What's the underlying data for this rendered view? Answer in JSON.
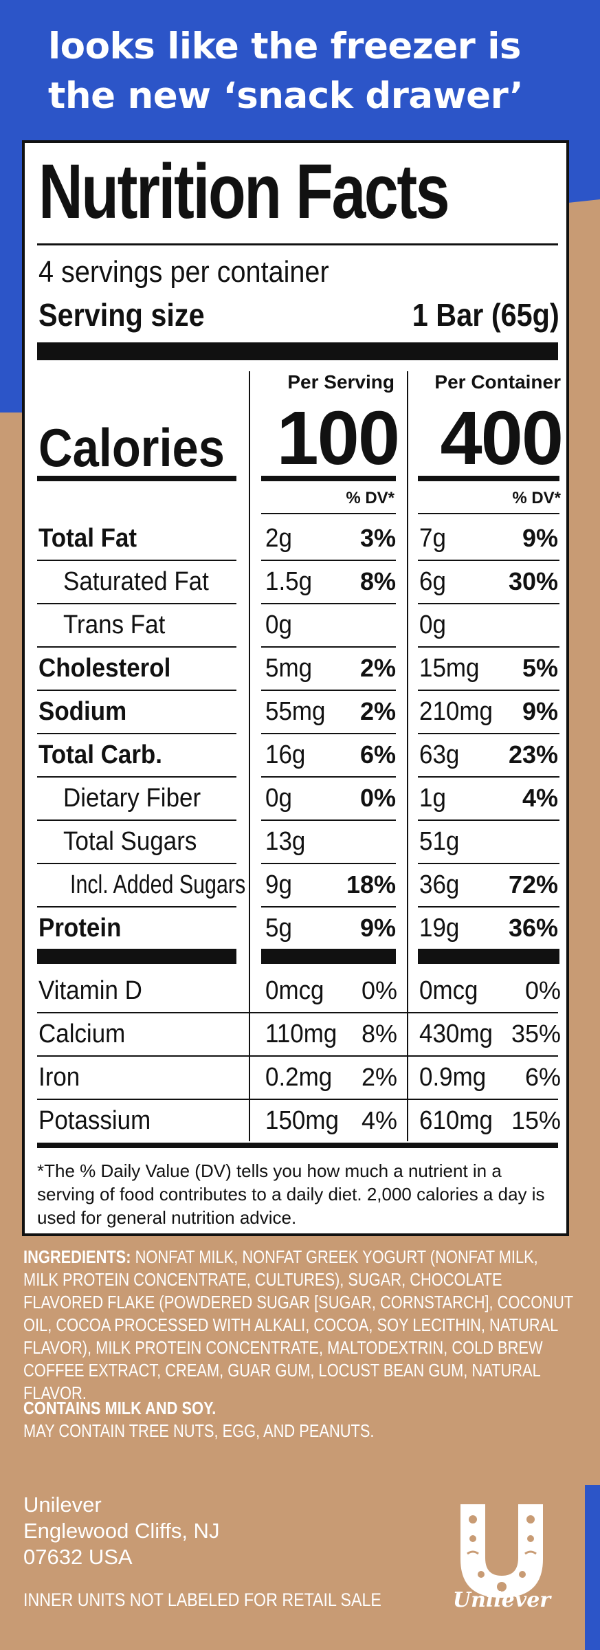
{
  "tagline": "looks like the freezer is the new ‘snack drawer’",
  "label": {
    "title": "Nutrition Facts",
    "servings_per_container": "4 servings per container",
    "serving_size_label": "Serving size",
    "serving_size_value": "1 Bar (65g)",
    "per_serving_header": "Per Serving",
    "per_container_header": "Per Container",
    "calories_label": "Calories",
    "calories_per_serving": "100",
    "calories_per_container": "400",
    "dv_header": "% DV*",
    "nutrients": [
      {
        "name": "Total Fat",
        "bold": true,
        "indent": 0,
        "serving_amount": "2g",
        "serving_dv": "3%",
        "container_amount": "7g",
        "container_dv": "9%"
      },
      {
        "name": "Saturated Fat",
        "bold": false,
        "indent": 1,
        "serving_amount": "1.5g",
        "serving_dv": "8%",
        "container_amount": "6g",
        "container_dv": "30%"
      },
      {
        "name": "Trans Fat",
        "bold": false,
        "indent": 1,
        "serving_amount": "0g",
        "serving_dv": "",
        "container_amount": "0g",
        "container_dv": ""
      },
      {
        "name": "Cholesterol",
        "bold": true,
        "indent": 0,
        "serving_amount": "5mg",
        "serving_dv": "2%",
        "container_amount": "15mg",
        "container_dv": "5%"
      },
      {
        "name": "Sodium",
        "bold": true,
        "indent": 0,
        "serving_amount": "55mg",
        "serving_dv": "2%",
        "container_amount": "210mg",
        "container_dv": "9%"
      },
      {
        "name": "Total Carb.",
        "bold": true,
        "indent": 0,
        "serving_amount": "16g",
        "serving_dv": "6%",
        "container_amount": "63g",
        "container_dv": "23%"
      },
      {
        "name": "Dietary Fiber",
        "bold": false,
        "indent": 1,
        "serving_amount": "0g",
        "serving_dv": "0%",
        "container_amount": "1g",
        "container_dv": "4%"
      },
      {
        "name": "Total Sugars",
        "bold": false,
        "indent": 1,
        "serving_amount": "13g",
        "serving_dv": "",
        "container_amount": "51g",
        "container_dv": ""
      },
      {
        "name": "Incl. Added Sugars",
        "bold": false,
        "indent": 2,
        "serving_amount": "9g",
        "serving_dv": "18%",
        "container_amount": "36g",
        "container_dv": "72%"
      },
      {
        "name": "Protein",
        "bold": true,
        "indent": 0,
        "serving_amount": "5g",
        "serving_dv": "9%",
        "container_amount": "19g",
        "container_dv": "36%"
      }
    ],
    "vitamins": [
      {
        "name": "Vitamin D",
        "serving_amount": "0mcg",
        "serving_dv": "0%",
        "container_amount": "0mcg",
        "container_dv": "0%"
      },
      {
        "name": "Calcium",
        "serving_amount": "110mg",
        "serving_dv": "8%",
        "container_amount": "430mg",
        "container_dv": "35%"
      },
      {
        "name": "Iron",
        "serving_amount": "0.2mg",
        "serving_dv": "2%",
        "container_amount": "0.9mg",
        "container_dv": "6%"
      },
      {
        "name": "Potassium",
        "serving_amount": "150mg",
        "serving_dv": "4%",
        "container_amount": "610mg",
        "container_dv": "15%"
      }
    ],
    "footnote": "*The % Daily Value (DV) tells you how much a nutrient in a serving of food contributes to a daily diet. 2,000 calories a day is used for general nutrition advice."
  },
  "ingredients": {
    "label": "INGREDIENTS:",
    "text": " NONFAT MILK, NONFAT GREEK YOGURT (NONFAT MILK, MILK PROTEIN CONCENTRATE, CULTURES), SUGAR, CHOCOLATE FLAVORED FLAKE (POWDERED SUGAR [SUGAR, CORNSTARCH], COCONUT OIL, COCOA PROCESSED WITH ALKALI, COCOA, SOY LECITHIN, NATURAL FLAVOR), MILK PROTEIN CONCENTRATE, MALTODEXTRIN, COLD BREW COFFEE EXTRACT, CREAM, GUAR GUM, LOCUST BEAN GUM, NATURAL FLAVOR."
  },
  "allergens": {
    "contains": "CONTAINS MILK AND SOY.",
    "may_contain": "MAY CONTAIN TREE NUTS, EGG, AND PEANUTS."
  },
  "address": {
    "company": "Unilever",
    "city": "Englewood Cliffs, NJ",
    "zip": "07632 USA"
  },
  "inner_units_notice": "INNER UNITS NOT LABELED FOR RETAIL SALE",
  "logo": {
    "icon": "unilever-u-icon",
    "wordmark": "Unilever"
  },
  "colors": {
    "blue": "#2c55c8",
    "tan": "#c89b74",
    "black": "#111111",
    "white": "#ffffff"
  }
}
